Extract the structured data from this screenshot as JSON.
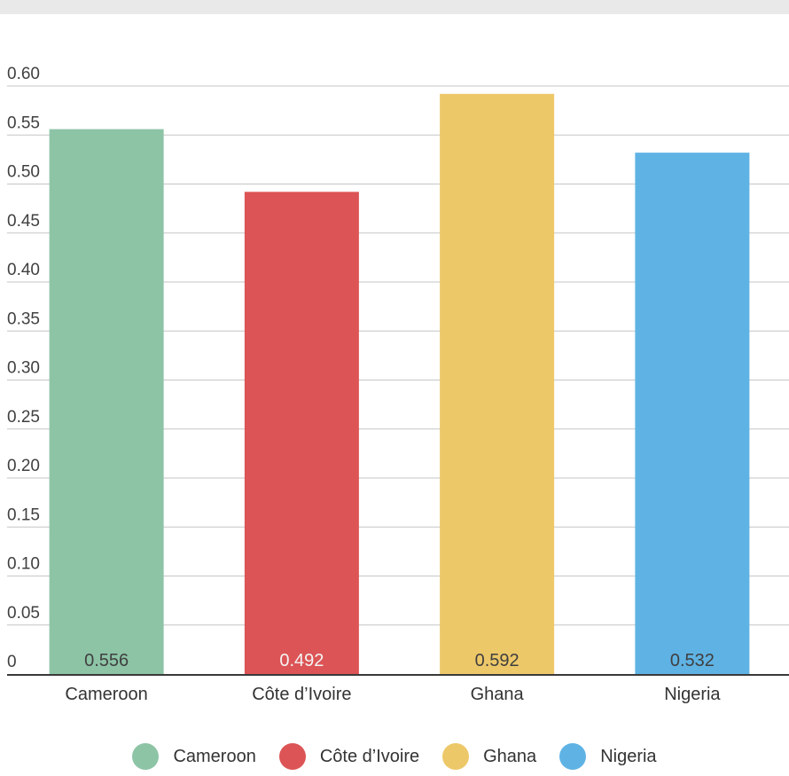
{
  "chart_data": {
    "type": "bar",
    "categories": [
      "Cameroon",
      "Côte d’Ivoire",
      "Ghana",
      "Nigeria"
    ],
    "values": [
      0.556,
      0.492,
      0.592,
      0.532
    ],
    "value_labels": [
      "0.556",
      "0.492",
      "0.592",
      "0.532"
    ],
    "colors": [
      "#8dc4a6",
      "#dc5455",
      "#edc869",
      "#5fb3e4"
    ],
    "value_label_colors": [
      "#3f3f3f",
      "#f4f4f4",
      "#3f3f3f",
      "#3f3f3f"
    ],
    "ylim": [
      0,
      0.6
    ],
    "y_ticks": [
      0,
      0.05,
      0.1,
      0.15,
      0.2,
      0.25,
      0.3,
      0.35,
      0.4,
      0.45,
      0.5,
      0.55,
      0.6
    ],
    "y_tick_labels": [
      "0",
      "0.05",
      "0.10",
      "0.15",
      "0.20",
      "0.25",
      "0.30",
      "0.35",
      "0.40",
      "0.45",
      "0.50",
      "0.55",
      "0.60"
    ],
    "grid": true,
    "legend_position": "bottom",
    "title": "",
    "xlabel": "",
    "ylabel": ""
  },
  "legend": {
    "items": [
      {
        "label": "Cameroon",
        "color": "#8dc4a6"
      },
      {
        "label": "Côte d’Ivoire",
        "color": "#dc5455"
      },
      {
        "label": "Ghana",
        "color": "#edc869"
      },
      {
        "label": "Nigeria",
        "color": "#5fb3e4"
      }
    ]
  }
}
